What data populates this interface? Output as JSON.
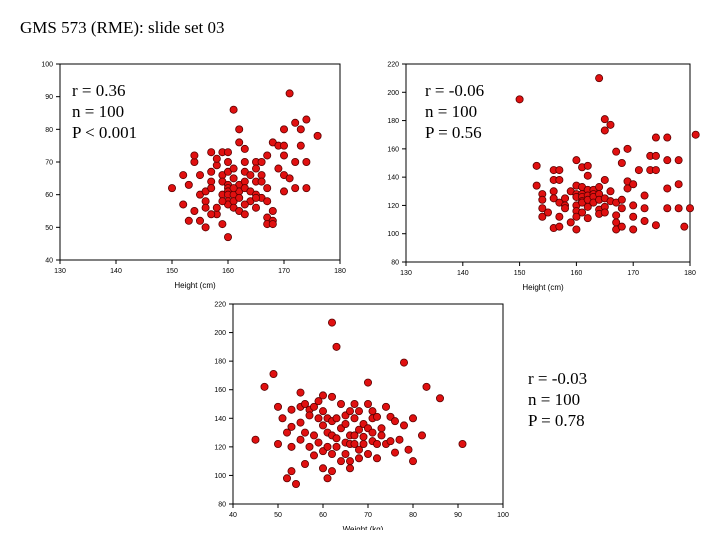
{
  "slide": {
    "title": "GMS 573 (RME): slide set 03"
  },
  "chart_data": [
    {
      "type": "scatter",
      "xlabel": "Height (cm)",
      "ylabel": "",
      "xlim": [
        130,
        180
      ],
      "ylim": [
        40,
        100
      ],
      "xticks": [
        130,
        140,
        150,
        160,
        170,
        180
      ],
      "yticks": [
        40,
        50,
        60,
        70,
        80,
        90,
        100
      ],
      "stats": {
        "r": "r = 0.36",
        "n": "n = 100",
        "p": "P < 0.001"
      },
      "marker_color": "#e01010",
      "points": [
        [
          150,
          62
        ],
        [
          152,
          57
        ],
        [
          152,
          66
        ],
        [
          153,
          52
        ],
        [
          153,
          63
        ],
        [
          154,
          70
        ],
        [
          154,
          72
        ],
        [
          154,
          55
        ],
        [
          155,
          66
        ],
        [
          155,
          60
        ],
        [
          156,
          61
        ],
        [
          156,
          58
        ],
        [
          156,
          56
        ],
        [
          156,
          50
        ],
        [
          157,
          73
        ],
        [
          157,
          67
        ],
        [
          157,
          64
        ],
        [
          157,
          62
        ],
        [
          158,
          69
        ],
        [
          158,
          54
        ],
        [
          158,
          56
        ],
        [
          158,
          71
        ],
        [
          159,
          73
        ],
        [
          159,
          66
        ],
        [
          159,
          64
        ],
        [
          159,
          60
        ],
        [
          159,
          51
        ],
        [
          160,
          73
        ],
        [
          160,
          70
        ],
        [
          160,
          67
        ],
        [
          160,
          63
        ],
        [
          160,
          62
        ],
        [
          160,
          61
        ],
        [
          160,
          60
        ],
        [
          160,
          58
        ],
        [
          160,
          57
        ],
        [
          160,
          47
        ],
        [
          161,
          86
        ],
        [
          161,
          68
        ],
        [
          161,
          65
        ],
        [
          161,
          60
        ],
        [
          161,
          58
        ],
        [
          161,
          56
        ],
        [
          162,
          76
        ],
        [
          162,
          80
        ],
        [
          162,
          63
        ],
        [
          162,
          61
        ],
        [
          162,
          59
        ],
        [
          162,
          55
        ],
        [
          163,
          74
        ],
        [
          163,
          70
        ],
        [
          163,
          67
        ],
        [
          163,
          64
        ],
        [
          163,
          62
        ],
        [
          163,
          54
        ],
        [
          164,
          66
        ],
        [
          164,
          61
        ],
        [
          164,
          58
        ],
        [
          165,
          70
        ],
        [
          165,
          68
        ],
        [
          165,
          64
        ],
        [
          165,
          60
        ],
        [
          165,
          56
        ],
        [
          166,
          70
        ],
        [
          166,
          66
        ],
        [
          166,
          64
        ],
        [
          166,
          59
        ],
        [
          167,
          72
        ],
        [
          167,
          62
        ],
        [
          167,
          58
        ],
        [
          167,
          53
        ],
        [
          167,
          51
        ],
        [
          168,
          76
        ],
        [
          168,
          52
        ],
        [
          168,
          51
        ],
        [
          168,
          55
        ],
        [
          169,
          75
        ],
        [
          169,
          68
        ],
        [
          170,
          80
        ],
        [
          170,
          75
        ],
        [
          170,
          72
        ],
        [
          170,
          66
        ],
        [
          170,
          61
        ],
        [
          171,
          91
        ],
        [
          171,
          65
        ],
        [
          172,
          82
        ],
        [
          172,
          70
        ],
        [
          172,
          62
        ],
        [
          173,
          75
        ],
        [
          173,
          80
        ],
        [
          174,
          83
        ],
        [
          174,
          70
        ],
        [
          174,
          62
        ],
        [
          176,
          78
        ],
        [
          157,
          54
        ],
        [
          155,
          52
        ],
        [
          163,
          57
        ],
        [
          161,
          62
        ],
        [
          159,
          58
        ],
        [
          165,
          59
        ]
      ]
    },
    {
      "type": "scatter",
      "xlabel": "Height (cm)",
      "ylabel": "",
      "xlim": [
        130,
        180
      ],
      "ylim": [
        80,
        220
      ],
      "xticks": [
        130,
        140,
        150,
        160,
        170,
        180
      ],
      "yticks": [
        80,
        100,
        120,
        140,
        160,
        180,
        200,
        220
      ],
      "stats": {
        "r": "r = -0.06",
        "n": "n = 100",
        "p": "P = 0.56"
      },
      "marker_color": "#e01010",
      "points": [
        [
          150,
          195
        ],
        [
          153,
          148
        ],
        [
          153,
          134
        ],
        [
          154,
          128
        ],
        [
          154,
          124
        ],
        [
          154,
          118
        ],
        [
          154,
          112
        ],
        [
          155,
          115
        ],
        [
          156,
          145
        ],
        [
          156,
          138
        ],
        [
          156,
          130
        ],
        [
          156,
          125
        ],
        [
          156,
          104
        ],
        [
          157,
          145
        ],
        [
          157,
          138
        ],
        [
          157,
          122
        ],
        [
          157,
          112
        ],
        [
          157,
          105
        ],
        [
          158,
          125
        ],
        [
          158,
          120
        ],
        [
          158,
          118
        ],
        [
          159,
          108
        ],
        [
          159,
          130
        ],
        [
          160,
          152
        ],
        [
          160,
          134
        ],
        [
          160,
          128
        ],
        [
          160,
          126
        ],
        [
          160,
          120
        ],
        [
          160,
          116
        ],
        [
          160,
          112
        ],
        [
          160,
          103
        ],
        [
          161,
          147
        ],
        [
          161,
          133
        ],
        [
          161,
          128
        ],
        [
          161,
          126
        ],
        [
          161,
          123
        ],
        [
          161,
          122
        ],
        [
          161,
          115
        ],
        [
          162,
          148
        ],
        [
          162,
          141
        ],
        [
          162,
          131
        ],
        [
          162,
          127
        ],
        [
          162,
          124
        ],
        [
          162,
          119
        ],
        [
          162,
          111
        ],
        [
          163,
          131
        ],
        [
          163,
          128
        ],
        [
          163,
          126
        ],
        [
          163,
          122
        ],
        [
          164,
          210
        ],
        [
          164,
          133
        ],
        [
          164,
          128
        ],
        [
          164,
          124
        ],
        [
          164,
          117
        ],
        [
          164,
          114
        ],
        [
          165,
          181
        ],
        [
          165,
          173
        ],
        [
          165,
          138
        ],
        [
          165,
          125
        ],
        [
          165,
          119
        ],
        [
          165,
          115
        ],
        [
          166,
          177
        ],
        [
          166,
          130
        ],
        [
          166,
          123
        ],
        [
          167,
          158
        ],
        [
          167,
          122
        ],
        [
          167,
          113
        ],
        [
          167,
          108
        ],
        [
          167,
          103
        ],
        [
          168,
          150
        ],
        [
          168,
          124
        ],
        [
          168,
          118
        ],
        [
          168,
          105
        ],
        [
          169,
          160
        ],
        [
          169,
          137
        ],
        [
          169,
          132
        ],
        [
          170,
          135
        ],
        [
          170,
          120
        ],
        [
          170,
          112
        ],
        [
          170,
          103
        ],
        [
          171,
          145
        ],
        [
          172,
          127
        ],
        [
          172,
          118
        ],
        [
          172,
          109
        ],
        [
          173,
          155
        ],
        [
          173,
          145
        ],
        [
          174,
          168
        ],
        [
          174,
          155
        ],
        [
          174,
          145
        ],
        [
          174,
          106
        ],
        [
          176,
          168
        ],
        [
          176,
          152
        ],
        [
          176,
          132
        ],
        [
          176,
          118
        ],
        [
          178,
          152
        ],
        [
          178,
          135
        ],
        [
          178,
          118
        ],
        [
          179,
          105
        ],
        [
          180,
          118
        ],
        [
          181,
          170
        ]
      ]
    },
    {
      "type": "scatter",
      "xlabel": "Weight (kg)",
      "ylabel": "",
      "xlim": [
        40,
        100
      ],
      "ylim": [
        80,
        220
      ],
      "xticks": [
        40,
        50,
        60,
        70,
        80,
        90,
        100
      ],
      "yticks": [
        80,
        100,
        120,
        140,
        160,
        180,
        200,
        220
      ],
      "stats": {
        "r": "r = -0.03",
        "n": "n = 100",
        "p": "P = 0.78"
      },
      "marker_color": "#e01010",
      "points": [
        [
          45,
          125
        ],
        [
          47,
          162
        ],
        [
          49,
          171
        ],
        [
          50,
          148
        ],
        [
          50,
          122
        ],
        [
          51,
          140
        ],
        [
          52,
          130
        ],
        [
          52,
          98
        ],
        [
          53,
          146
        ],
        [
          53,
          134
        ],
        [
          53,
          120
        ],
        [
          53,
          103
        ],
        [
          54,
          94
        ],
        [
          55,
          158
        ],
        [
          55,
          148
        ],
        [
          55,
          137
        ],
        [
          55,
          125
        ],
        [
          56,
          150
        ],
        [
          56,
          130
        ],
        [
          56,
          108
        ],
        [
          57,
          146
        ],
        [
          57,
          142
        ],
        [
          57,
          120
        ],
        [
          58,
          148
        ],
        [
          58,
          128
        ],
        [
          58,
          114
        ],
        [
          59,
          152
        ],
        [
          59,
          140
        ],
        [
          59,
          123
        ],
        [
          60,
          156
        ],
        [
          60,
          145
        ],
        [
          60,
          135
        ],
        [
          60,
          117
        ],
        [
          60,
          105
        ],
        [
          61,
          140
        ],
        [
          61,
          130
        ],
        [
          61,
          120
        ],
        [
          61,
          98
        ],
        [
          62,
          207
        ],
        [
          62,
          155
        ],
        [
          62,
          138
        ],
        [
          62,
          128
        ],
        [
          62,
          115
        ],
        [
          62,
          103
        ],
        [
          63,
          190
        ],
        [
          63,
          140
        ],
        [
          63,
          126
        ],
        [
          63,
          120
        ],
        [
          64,
          150
        ],
        [
          64,
          133
        ],
        [
          64,
          110
        ],
        [
          65,
          142
        ],
        [
          65,
          136
        ],
        [
          65,
          123
        ],
        [
          65,
          115
        ],
        [
          66,
          145
        ],
        [
          66,
          128
        ],
        [
          66,
          122
        ],
        [
          66,
          110
        ],
        [
          66,
          105
        ],
        [
          67,
          150
        ],
        [
          67,
          140
        ],
        [
          67,
          128
        ],
        [
          67,
          122
        ],
        [
          68,
          145
        ],
        [
          68,
          132
        ],
        [
          68,
          118
        ],
        [
          68,
          112
        ],
        [
          69,
          136
        ],
        [
          69,
          127
        ],
        [
          69,
          122
        ],
        [
          70,
          165
        ],
        [
          70,
          150
        ],
        [
          70,
          133
        ],
        [
          70,
          115
        ],
        [
          71,
          145
        ],
        [
          71,
          140
        ],
        [
          71,
          130
        ],
        [
          71,
          124
        ],
        [
          72,
          141
        ],
        [
          72,
          122
        ],
        [
          72,
          112
        ],
        [
          73,
          133
        ],
        [
          73,
          128
        ],
        [
          74,
          148
        ],
        [
          74,
          122
        ],
        [
          75,
          141
        ],
        [
          75,
          124
        ],
        [
          76,
          138
        ],
        [
          76,
          116
        ],
        [
          77,
          125
        ],
        [
          78,
          179
        ],
        [
          78,
          135
        ],
        [
          79,
          118
        ],
        [
          80,
          140
        ],
        [
          80,
          110
        ],
        [
          82,
          128
        ],
        [
          83,
          162
        ],
        [
          86,
          154
        ],
        [
          91,
          122
        ]
      ]
    }
  ]
}
